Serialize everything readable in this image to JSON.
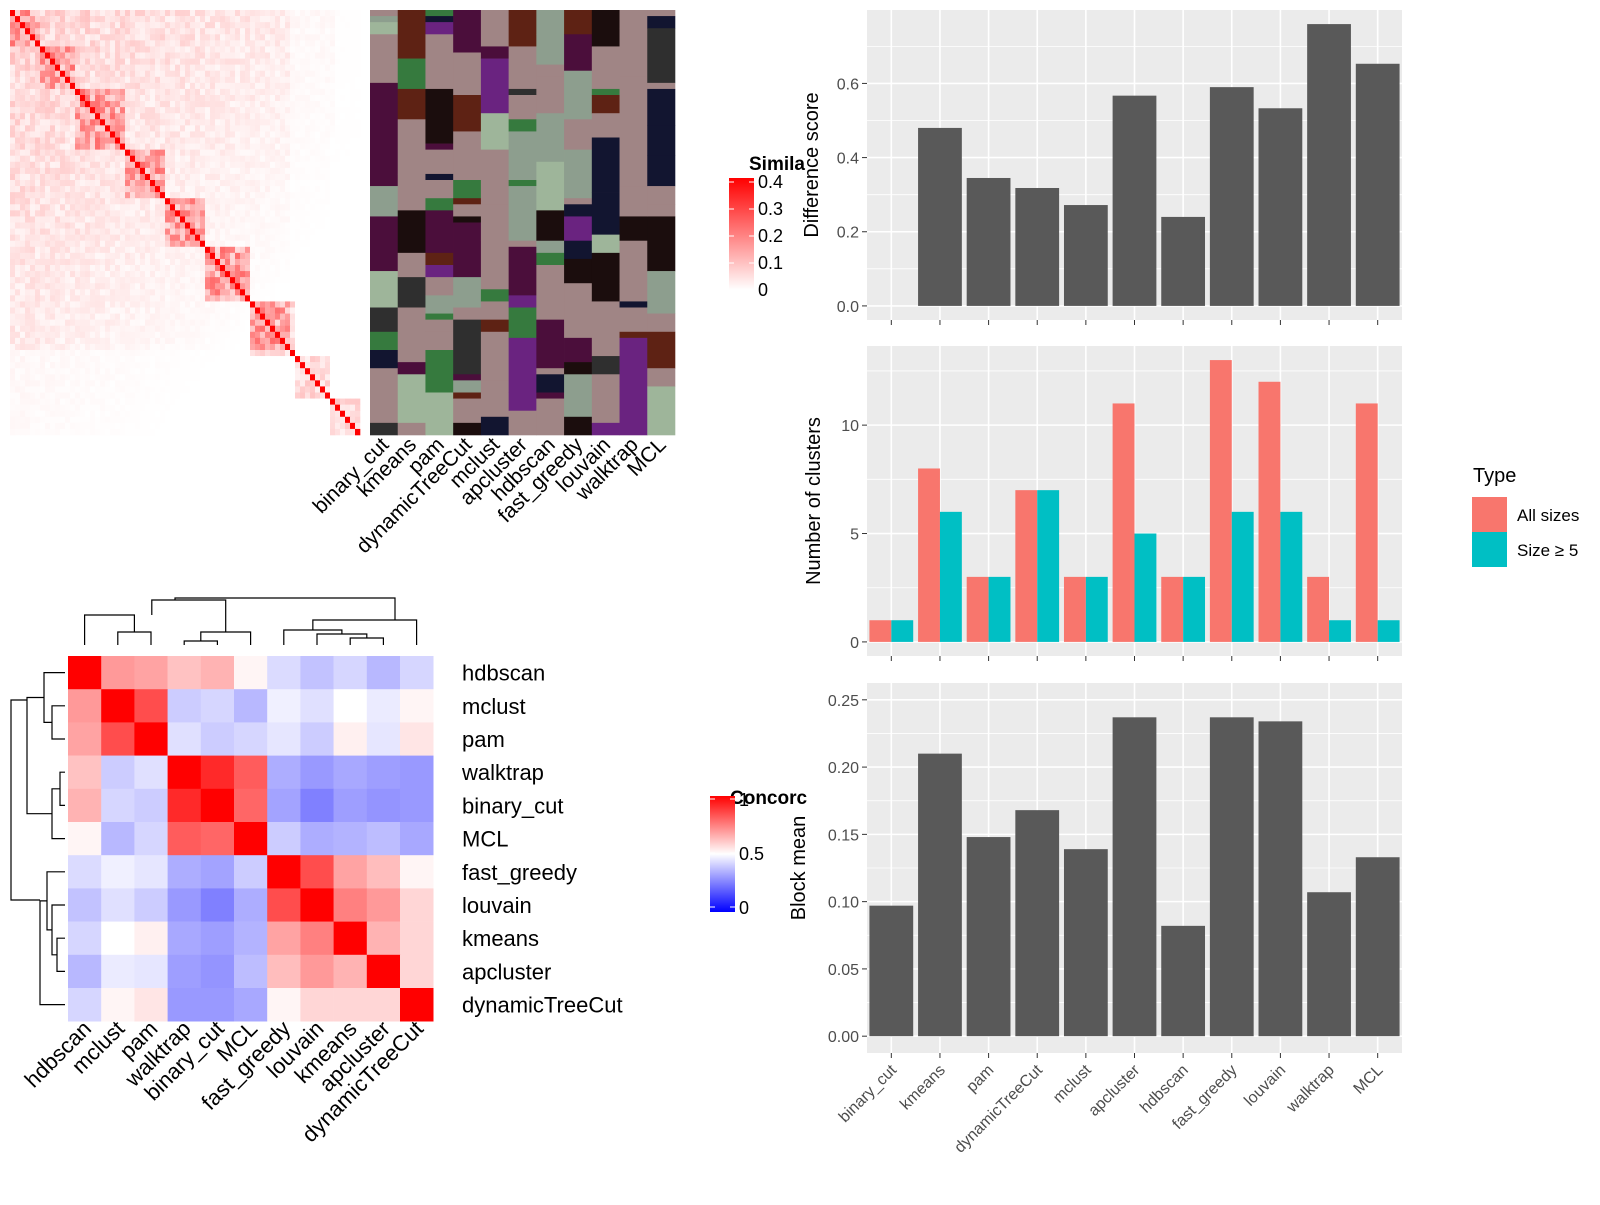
{
  "methods": [
    "binary_cut",
    "kmeans",
    "pam",
    "dynamicTreeCut",
    "mclust",
    "apcluster",
    "hdbscan",
    "fast_greedy",
    "louvain",
    "walktrap",
    "MCL"
  ],
  "colors": {
    "panel_bg": "#EBEBEB",
    "bar_dark": "#595959",
    "all_sizes": "#F8766D",
    "size_ge5": "#00BFC4",
    "heat_red": "#FF0000",
    "heat_blue": "#0000FF",
    "class_bg": "#A08585"
  },
  "similarity_heatmap": {
    "legend_title": "Simila",
    "legend_ticks": [
      "0.4",
      "0.3",
      "0.2",
      "0.1",
      "0"
    ],
    "size": 70
  },
  "class_matrix": {
    "columns": [
      "binary_cut",
      "kmeans",
      "pam",
      "dynamicTreeCut",
      "mclust",
      "apcluster",
      "hdbscan",
      "fast_greedy",
      "louvain",
      "walktrap",
      "MCL"
    ]
  },
  "concordance": {
    "legend_title": "Concorc",
    "legend_ticks": [
      "1",
      "0.5",
      "0"
    ],
    "order": [
      "hdbscan",
      "mclust",
      "pam",
      "walktrap",
      "binary_cut",
      "MCL",
      "fast_greedy",
      "louvain",
      "kmeans",
      "apcluster",
      "dynamicTreeCut"
    ],
    "matrix": [
      [
        1.0,
        0.7,
        0.68,
        0.62,
        0.65,
        0.52,
        0.43,
        0.38,
        0.42,
        0.36,
        0.42
      ],
      [
        0.7,
        1.0,
        0.85,
        0.4,
        0.42,
        0.36,
        0.47,
        0.44,
        0.5,
        0.46,
        0.52
      ],
      [
        0.68,
        0.85,
        1.0,
        0.44,
        0.4,
        0.42,
        0.45,
        0.4,
        0.53,
        0.45,
        0.55
      ],
      [
        0.62,
        0.4,
        0.44,
        1.0,
        0.92,
        0.82,
        0.34,
        0.3,
        0.33,
        0.31,
        0.3
      ],
      [
        0.65,
        0.42,
        0.4,
        0.92,
        1.0,
        0.8,
        0.32,
        0.25,
        0.31,
        0.29,
        0.3
      ],
      [
        0.52,
        0.36,
        0.42,
        0.82,
        0.8,
        1.0,
        0.4,
        0.34,
        0.35,
        0.37,
        0.33
      ],
      [
        0.43,
        0.47,
        0.45,
        0.34,
        0.32,
        0.4,
        1.0,
        0.85,
        0.68,
        0.63,
        0.52
      ],
      [
        0.38,
        0.44,
        0.4,
        0.3,
        0.25,
        0.34,
        0.85,
        1.0,
        0.75,
        0.7,
        0.58
      ],
      [
        0.42,
        0.5,
        0.53,
        0.33,
        0.31,
        0.35,
        0.68,
        0.75,
        1.0,
        0.65,
        0.58
      ],
      [
        0.36,
        0.46,
        0.45,
        0.31,
        0.29,
        0.37,
        0.63,
        0.7,
        0.65,
        1.0,
        0.58
      ],
      [
        0.42,
        0.52,
        0.55,
        0.3,
        0.3,
        0.33,
        0.52,
        0.58,
        0.58,
        0.58,
        1.0
      ]
    ]
  },
  "chart_data": [
    {
      "type": "bar",
      "categories": [
        "binary_cut",
        "kmeans",
        "pam",
        "dynamicTreeCut",
        "mclust",
        "apcluster",
        "hdbscan",
        "fast_greedy",
        "louvain",
        "walktrap",
        "MCL"
      ],
      "values": [
        0,
        0.48,
        0.345,
        0.318,
        0.272,
        0.567,
        0.24,
        0.59,
        0.533,
        0.76,
        0.653
      ],
      "ylabel": "Difference score",
      "ylim": [
        0,
        0.76
      ],
      "yticks": [
        0.0,
        0.2,
        0.4,
        0.6
      ],
      "ytick_labels": [
        "0.0",
        "0.2",
        "0.4",
        "0.6"
      ],
      "grid": true
    },
    {
      "type": "bar",
      "categories": [
        "binary_cut",
        "kmeans",
        "pam",
        "dynamicTreeCut",
        "mclust",
        "apcluster",
        "hdbscan",
        "fast_greedy",
        "louvain",
        "walktrap",
        "MCL"
      ],
      "series": [
        {
          "name": "All sizes",
          "values": [
            1,
            8,
            3,
            7,
            3,
            11,
            3,
            13,
            12,
            3,
            11
          ]
        },
        {
          "name": "Size ≥ 5",
          "values": [
            1,
            6,
            3,
            7,
            3,
            5,
            3,
            6,
            6,
            1,
            1
          ]
        }
      ],
      "ylabel": "Number of clusters",
      "legend_title": "Type",
      "legend_position": "right",
      "ylim": [
        0,
        13
      ],
      "yticks": [
        0,
        5,
        10
      ],
      "ytick_labels": [
        "0",
        "5",
        "10"
      ],
      "grid": true
    },
    {
      "type": "bar",
      "categories": [
        "binary_cut",
        "kmeans",
        "pam",
        "dynamicTreeCut",
        "mclust",
        "apcluster",
        "hdbscan",
        "fast_greedy",
        "louvain",
        "walktrap",
        "MCL"
      ],
      "values": [
        0.097,
        0.21,
        0.148,
        0.168,
        0.139,
        0.237,
        0.082,
        0.237,
        0.234,
        0.107,
        0.133
      ],
      "ylabel": "Block mean",
      "ylim": [
        0,
        0.25
      ],
      "yticks": [
        0.0,
        0.05,
        0.1,
        0.15,
        0.2,
        0.25
      ],
      "ytick_labels": [
        "0.00",
        "0.05",
        "0.10",
        "0.15",
        "0.20",
        "0.25"
      ],
      "grid": true
    }
  ]
}
